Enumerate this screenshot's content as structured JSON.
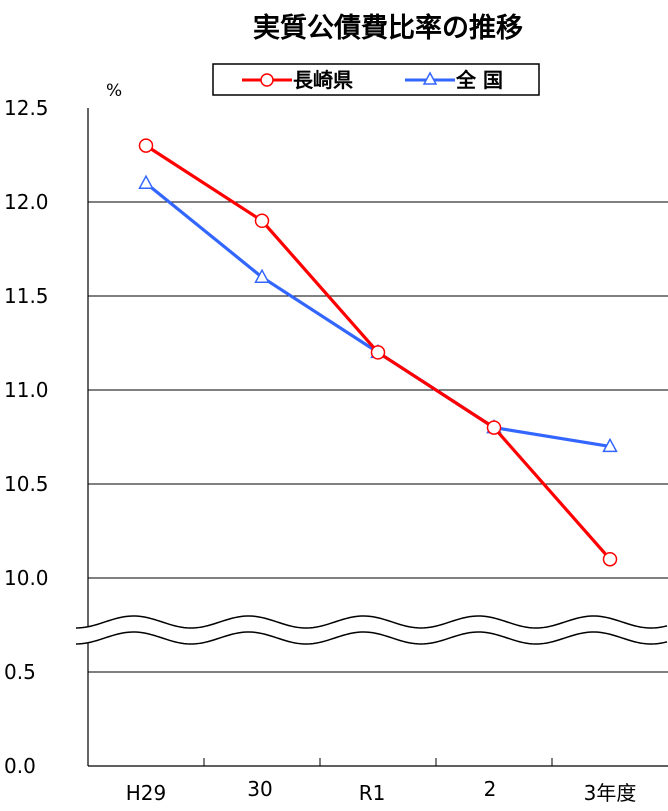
{
  "chart_data": {
    "type": "line",
    "title": "実質公債費比率の推移",
    "ylabel": "%",
    "categories": [
      "H29",
      "30",
      "R1",
      "2",
      "3年度"
    ],
    "y_ticks_upper": [
      "12.5",
      "12.0",
      "11.5",
      "11.0",
      "10.5",
      "10.0"
    ],
    "y_ticks_lower": [
      "0.5",
      "0.0"
    ],
    "ylim_upper": [
      10.0,
      12.5
    ],
    "ylim_lower": [
      0.0,
      0.5
    ],
    "axis_break": true,
    "grid": true,
    "legend_position": "top-center",
    "series": [
      {
        "name": "長崎県",
        "values": [
          12.3,
          11.9,
          11.2,
          10.8,
          10.1
        ],
        "color": "#ff0000",
        "marker": "circle"
      },
      {
        "name": "全 国",
        "values": [
          12.1,
          11.6,
          11.2,
          10.8,
          10.7
        ],
        "color": "#3366ff",
        "marker": "triangle"
      }
    ]
  }
}
